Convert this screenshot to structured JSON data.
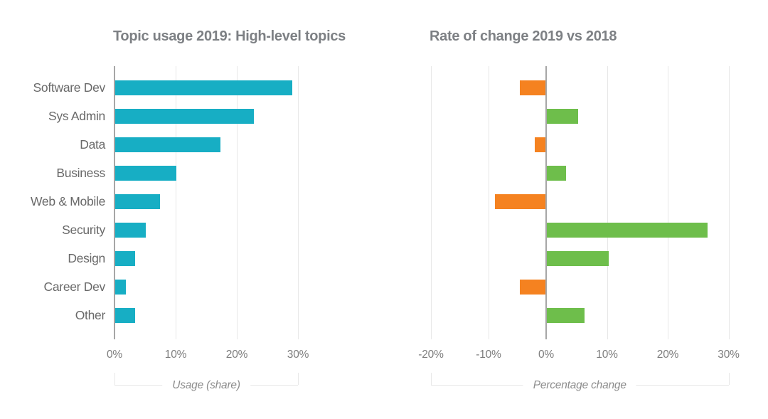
{
  "page": {
    "background": "#ffffff"
  },
  "colors": {
    "teal": "#17aec4",
    "orange": "#f58220",
    "green": "#6ebe4b",
    "title_text": "#7d8084",
    "category_text": "#696969",
    "tick_text": "#7d7d7d",
    "axis_label_text": "#8c8c8c",
    "gridline": "#e7e7e7",
    "zero_line": "#a6a6a6"
  },
  "chart_data": [
    {
      "type": "bar",
      "orientation": "horizontal",
      "title": "Topic usage 2019: High-level topics",
      "categories": [
        "Software Dev",
        "Sys Admin",
        "Data",
        "Business",
        "Web & Mobile",
        "Security",
        "Design",
        "Career Dev",
        "Other"
      ],
      "values": [
        28.9,
        22.7,
        17.2,
        10.0,
        7.3,
        5.0,
        3.2,
        1.7,
        3.2
      ],
      "unit": "%",
      "xlabel": "Usage (share)",
      "xticks": [
        0,
        10,
        20,
        30
      ],
      "xtick_labels": [
        "0%",
        "10%",
        "20%",
        "30%"
      ],
      "xlim": [
        0,
        32
      ],
      "grid": true,
      "legend": false,
      "bar_color": "#17aec4"
    },
    {
      "type": "bar",
      "orientation": "horizontal",
      "title": "Rate of change 2019 vs 2018",
      "categories": [
        "Software Dev",
        "Sys Admin",
        "Data",
        "Business",
        "Web & Mobile",
        "Security",
        "Design",
        "Career Dev",
        "Other"
      ],
      "values": [
        -4.5,
        5.1,
        -1.8,
        3.2,
        -8.8,
        26.4,
        10.2,
        -4.5,
        6.2
      ],
      "unit": "%",
      "xlabel": "Percentage change",
      "xticks": [
        -20,
        -10,
        0,
        10,
        20,
        30
      ],
      "xtick_labels": [
        "-20%",
        "-10%",
        "0%",
        "10%",
        "20%",
        "30%"
      ],
      "xlim": [
        -22,
        31
      ],
      "grid": true,
      "legend": false,
      "positive_color": "#6ebe4b",
      "negative_color": "#f58220"
    }
  ]
}
